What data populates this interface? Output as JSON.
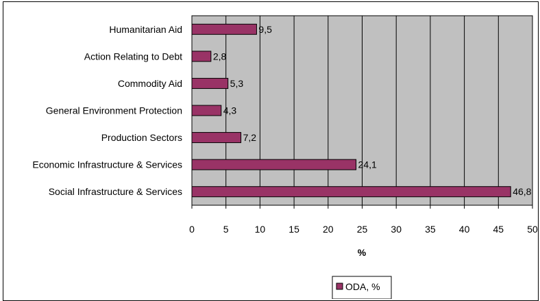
{
  "chart_data": {
    "type": "bar",
    "orientation": "horizontal",
    "categories": [
      "Social Infrastructure & Services",
      "Economic Infrastructure & Services",
      "Production Sectors",
      "General Environment Protection",
      "Commodity Aid",
      "Action Relating to Debt",
      "Humanitarian Aid"
    ],
    "series": [
      {
        "name": "ODA, %",
        "values": [
          46.8,
          24.1,
          7.2,
          4.3,
          5.3,
          2.8,
          9.5
        ],
        "labels": [
          "46,8",
          "24,1",
          "7,2",
          "4,3",
          "5,3",
          "2,8",
          "9,5"
        ]
      }
    ],
    "xlabel": "%",
    "ylabel": "",
    "xlim": [
      0,
      50
    ],
    "xticks": [
      "0",
      "5",
      "10",
      "15",
      "20",
      "25",
      "30",
      "35",
      "40",
      "45",
      "50"
    ],
    "grid": true,
    "legend_position": "bottom",
    "colors": {
      "bar_fill": "#993366",
      "bar_stroke": "#000000",
      "plot_background": "#c0c0c0",
      "gridline": "#000000"
    }
  }
}
